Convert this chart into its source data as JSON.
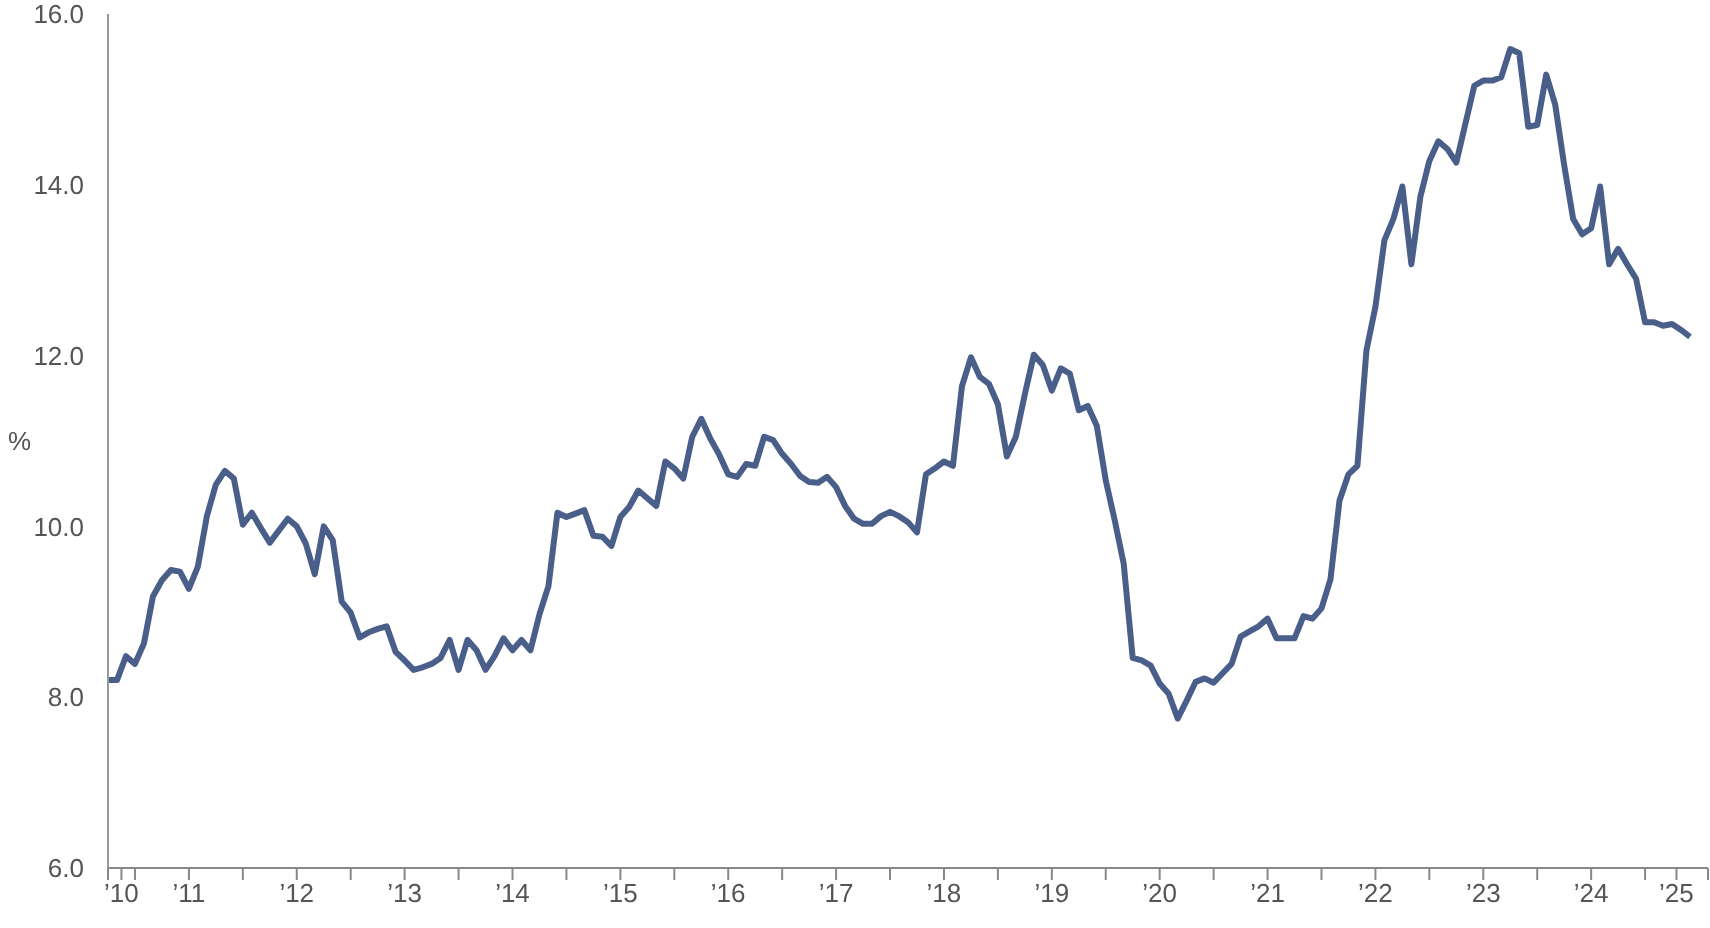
{
  "chart_data": {
    "type": "line",
    "ylabel": "%",
    "x": [
      "2010-10",
      "2010-11",
      "2010-12",
      "2011-01",
      "2011-02",
      "2011-03",
      "2011-04",
      "2011-05",
      "2011-06",
      "2011-07",
      "2011-08",
      "2011-09",
      "2011-10",
      "2011-11",
      "2011-12",
      "2012-01",
      "2012-02",
      "2012-03",
      "2012-04",
      "2012-05",
      "2012-06",
      "2012-07",
      "2012-08",
      "2012-09",
      "2012-10",
      "2012-11",
      "2012-12",
      "2013-01",
      "2013-02",
      "2013-03",
      "2013-04",
      "2013-05",
      "2013-06",
      "2013-07",
      "2013-08",
      "2013-09",
      "2013-10",
      "2013-11",
      "2013-12",
      "2014-01",
      "2014-02",
      "2014-03",
      "2014-04",
      "2014-05",
      "2014-06",
      "2014-07",
      "2014-08",
      "2014-09",
      "2014-10",
      "2014-11",
      "2014-12",
      "2015-01",
      "2015-02",
      "2015-03",
      "2015-04",
      "2015-05",
      "2015-06",
      "2015-07",
      "2015-08",
      "2015-09",
      "2015-10",
      "2015-11",
      "2015-12",
      "2016-01",
      "2016-02",
      "2016-03",
      "2016-04",
      "2016-05",
      "2016-06",
      "2016-07",
      "2016-08",
      "2016-09",
      "2016-10",
      "2016-11",
      "2016-12",
      "2017-01",
      "2017-02",
      "2017-03",
      "2017-04",
      "2017-05",
      "2017-06",
      "2017-07",
      "2017-08",
      "2017-09",
      "2017-10",
      "2017-11",
      "2017-12",
      "2018-01",
      "2018-02",
      "2018-03",
      "2018-04",
      "2018-05",
      "2018-06",
      "2018-07",
      "2018-08",
      "2018-09",
      "2018-10",
      "2018-11",
      "2018-12",
      "2019-01",
      "2019-02",
      "2019-03",
      "2019-04",
      "2019-05",
      "2019-06",
      "2019-07",
      "2019-08",
      "2019-09",
      "2019-10",
      "2019-11",
      "2019-12",
      "2020-01",
      "2020-02",
      "2020-03",
      "2020-04",
      "2020-05",
      "2020-06",
      "2020-07",
      "2020-08",
      "2020-09",
      "2020-10",
      "2020-11",
      "2020-12",
      "2021-01",
      "2021-02",
      "2021-03",
      "2021-04",
      "2021-05",
      "2021-06",
      "2021-07",
      "2021-08",
      "2021-09",
      "2021-10",
      "2021-11",
      "2021-12",
      "2022-01",
      "2022-02",
      "2022-03",
      "2022-04",
      "2022-05",
      "2022-06",
      "2022-07",
      "2022-08",
      "2022-09",
      "2022-10",
      "2022-11",
      "2022-12",
      "2023-01",
      "2023-02",
      "2023-03",
      "2023-04",
      "2023-05",
      "2023-06",
      "2023-07",
      "2023-08",
      "2023-09",
      "2023-10",
      "2023-11",
      "2023-12",
      "2024-01",
      "2024-02",
      "2024-03",
      "2024-04",
      "2024-05",
      "2024-06",
      "2024-07",
      "2024-08",
      "2024-09",
      "2024-10",
      "2024-11",
      "2024-12",
      "2025-01",
      "2025-02",
      "2025-03",
      "2025-04",
      "2025-05",
      "2025-06"
    ],
    "series": [
      {
        "color": "#4a5e8a",
        "values": [
          8.2,
          8.2,
          8.48,
          8.39,
          8.63,
          9.18,
          9.37,
          9.49,
          9.47,
          9.27,
          9.53,
          10.12,
          10.49,
          10.65,
          10.56,
          10.02,
          10.16,
          9.98,
          9.81,
          9.95,
          10.09,
          10.0,
          9.8,
          9.44,
          10.0,
          9.84,
          9.12,
          8.99,
          8.7,
          8.76,
          8.8,
          8.83,
          8.53,
          8.43,
          8.32,
          8.35,
          8.39,
          8.46,
          8.67,
          8.32,
          8.67,
          8.55,
          8.32,
          8.48,
          8.69,
          8.55,
          8.67,
          8.55,
          8.97,
          9.3,
          10.16,
          10.11,
          10.15,
          10.19,
          9.89,
          9.88,
          9.77,
          10.11,
          10.23,
          10.42,
          10.33,
          10.24,
          10.76,
          10.68,
          10.56,
          11.05,
          11.26,
          11.03,
          10.84,
          10.61,
          10.58,
          10.73,
          10.71,
          11.05,
          11.01,
          10.85,
          10.73,
          10.59,
          10.52,
          10.51,
          10.58,
          10.46,
          10.24,
          10.09,
          10.03,
          10.03,
          10.12,
          10.17,
          10.12,
          10.05,
          9.93,
          10.61,
          10.68,
          10.76,
          10.71,
          11.64,
          11.98,
          11.75,
          11.67,
          11.43,
          10.82,
          11.05,
          11.55,
          12.01,
          11.89,
          11.59,
          11.85,
          11.79,
          11.36,
          11.41,
          11.18,
          10.54,
          10.07,
          9.56,
          8.46,
          8.43,
          8.37,
          8.16,
          8.04,
          7.75,
          7.96,
          8.18,
          8.22,
          8.17,
          8.28,
          8.39,
          8.71,
          8.77,
          8.83,
          8.92,
          8.69,
          8.69,
          8.69,
          8.95,
          8.92,
          9.04,
          9.38,
          10.3,
          10.61,
          10.71,
          12.06,
          12.57,
          13.35,
          13.6,
          13.98,
          13.07,
          13.86,
          14.28,
          14.51,
          14.42,
          14.26,
          14.71,
          15.16,
          15.22,
          15.22,
          15.26,
          15.59,
          15.54,
          14.68,
          14.7,
          15.29,
          14.94,
          14.23,
          13.6,
          13.42,
          13.49,
          13.98,
          13.07,
          13.25,
          13.07,
          12.9,
          12.39,
          12.39,
          12.35,
          12.37,
          12.3,
          12.22
        ]
      }
    ],
    "xlim": [
      "2010-10",
      "2025-08"
    ],
    "xticks": [
      {
        "value": "2010-10",
        "label": null
      },
      {
        "value": "2010-11-16",
        "label": "’10"
      },
      {
        "value": "2011-01",
        "label": null
      },
      {
        "value": "2011-07",
        "label": "’11"
      },
      {
        "value": "2012-01",
        "label": null
      },
      {
        "value": "2012-07",
        "label": "’12"
      },
      {
        "value": "2013-01",
        "label": null
      },
      {
        "value": "2013-07",
        "label": "’13"
      },
      {
        "value": "2014-01",
        "label": null
      },
      {
        "value": "2014-07",
        "label": "’14"
      },
      {
        "value": "2015-01",
        "label": null
      },
      {
        "value": "2015-07",
        "label": "’15"
      },
      {
        "value": "2016-01",
        "label": null
      },
      {
        "value": "2016-07",
        "label": "’16"
      },
      {
        "value": "2017-01",
        "label": null
      },
      {
        "value": "2017-07",
        "label": "’17"
      },
      {
        "value": "2018-01",
        "label": null
      },
      {
        "value": "2018-07",
        "label": "’18"
      },
      {
        "value": "2019-01",
        "label": null
      },
      {
        "value": "2019-07",
        "label": "’19"
      },
      {
        "value": "2020-01",
        "label": null
      },
      {
        "value": "2020-07",
        "label": "’20"
      },
      {
        "value": "2021-01",
        "label": null
      },
      {
        "value": "2021-07",
        "label": "’21"
      },
      {
        "value": "2022-01",
        "label": null
      },
      {
        "value": "2022-07",
        "label": "’22"
      },
      {
        "value": "2023-01",
        "label": null
      },
      {
        "value": "2023-07",
        "label": "’23"
      },
      {
        "value": "2024-01",
        "label": null
      },
      {
        "value": "2024-07",
        "label": "’24"
      },
      {
        "value": "2025-01",
        "label": null
      },
      {
        "value": "2025-04-16",
        "label": "’25"
      },
      {
        "value": "2025-08",
        "label": null
      }
    ],
    "ylim": [
      6,
      16
    ],
    "yticks": [
      {
        "value": 6,
        "label": "6.0"
      },
      {
        "value": 8,
        "label": "8.0"
      },
      {
        "value": 10,
        "label": "10.0"
      },
      {
        "value": 12,
        "label": "12.0"
      },
      {
        "value": 14,
        "label": "14.0"
      },
      {
        "value": 16,
        "label": "16.0"
      }
    ],
    "grid": false,
    "marker": "none",
    "line_style": "solid"
  }
}
